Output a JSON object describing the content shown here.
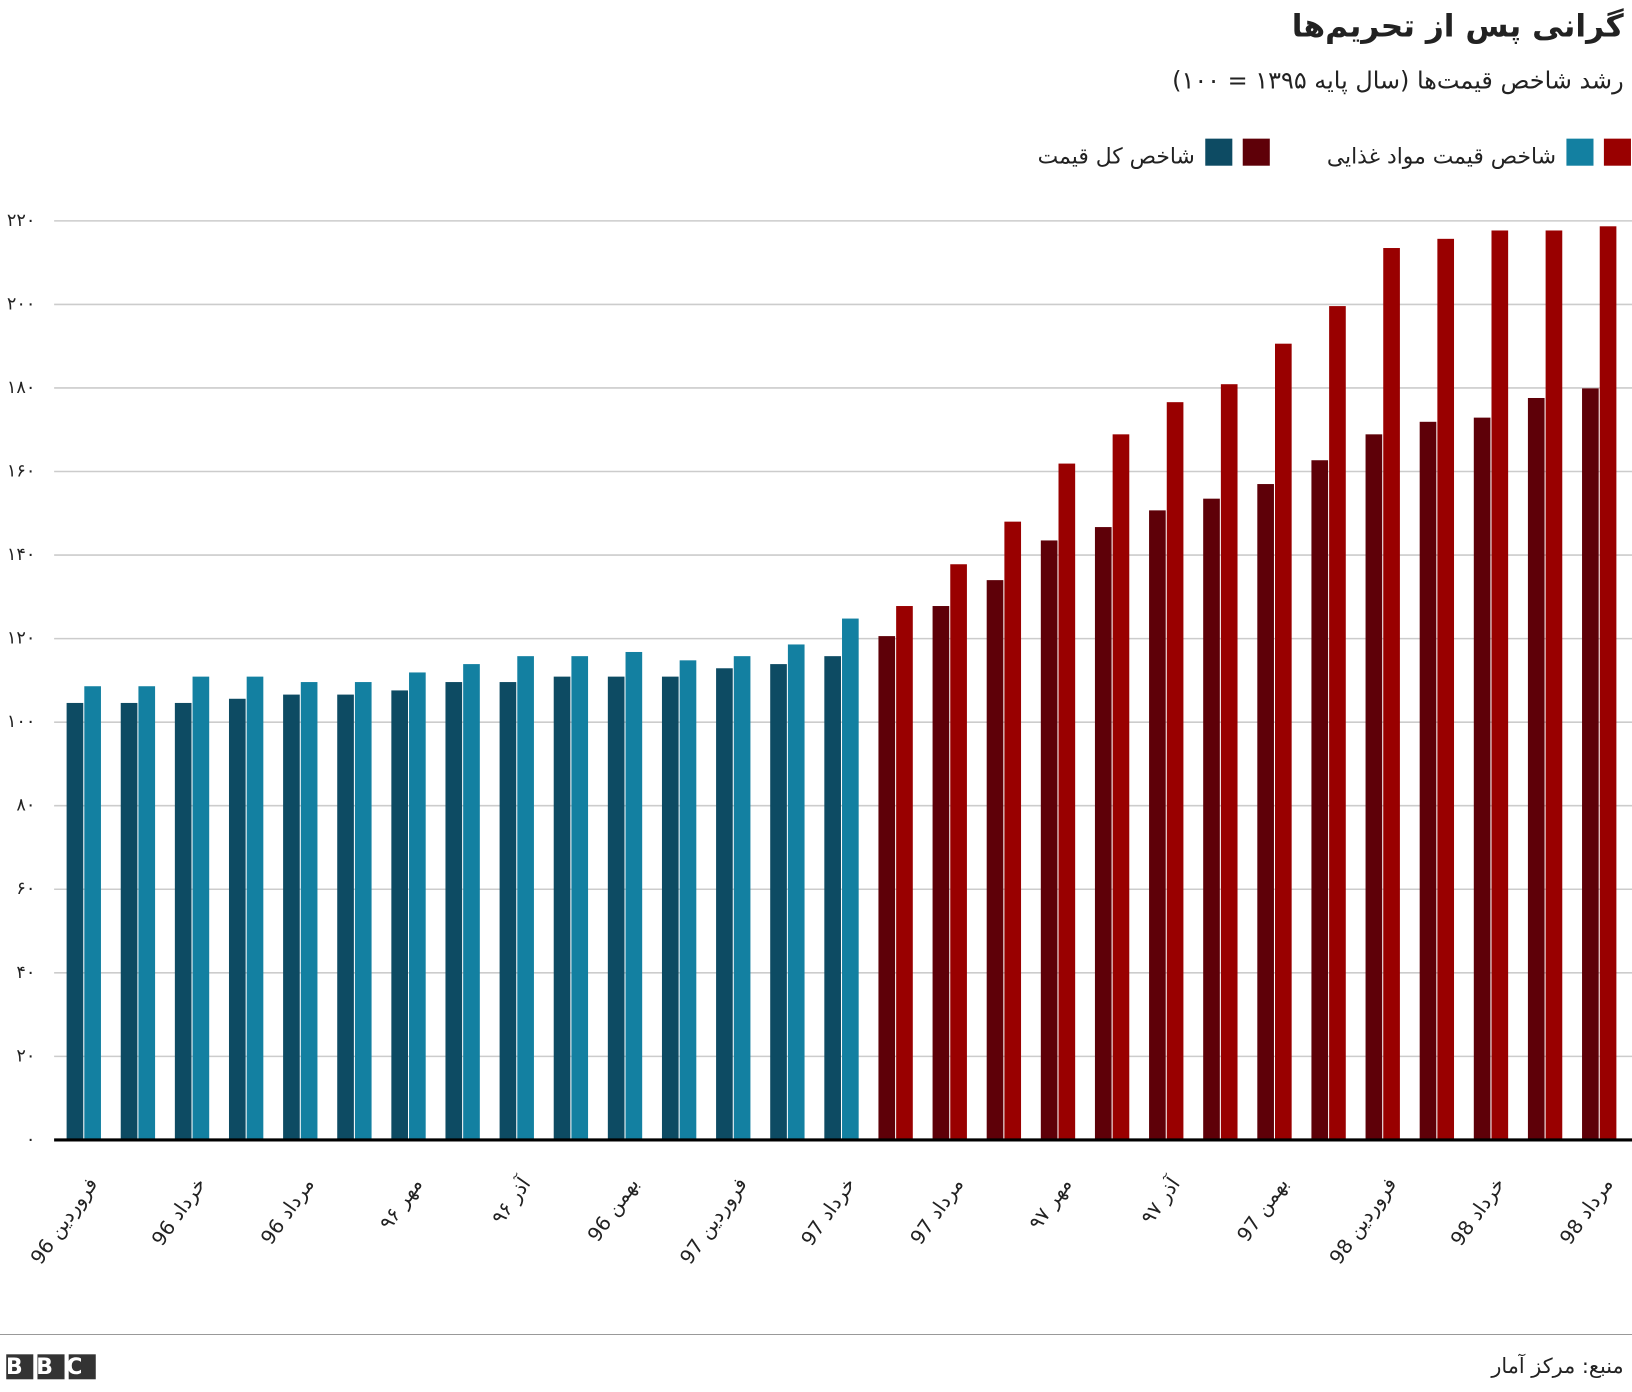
{
  "chart_data": {
    "type": "bar",
    "title": "گرانی پس از تحریم‌ها",
    "subtitle": "رشد شاخص قیمت‌ها (سال پایه ۱۳۹۵ = ۱۰۰)",
    "source": "منبع: مرکز آمار",
    "logo": "BBC",
    "categories": [
      "فروردین 96",
      null,
      "خرداد 96",
      null,
      "مرداد 96",
      null,
      "مهر ۹۶",
      null,
      "آذر ۹۶",
      null,
      "بهمن 96",
      null,
      "فروردین 97",
      null,
      "خرداد 97",
      null,
      "مرداد 97",
      null,
      "مهر ۹۷",
      null,
      "آذر ۹۷",
      null,
      "بهمن 97",
      null,
      "فروردین 98",
      null,
      "خرداد 98",
      null,
      "مرداد 98"
    ],
    "series": [
      {
        "name": "شاخص کل قیمت",
        "colors": [
          "#0d4b63",
          "#0d4b63",
          "#0d4b63",
          "#0d4b63",
          "#0d4b63",
          "#0d4b63",
          "#0d4b63",
          "#0d4b63",
          "#0d4b63",
          "#0d4b63",
          "#0d4b63",
          "#0d4b63",
          "#0d4b63",
          "#0d4b63",
          "#0d4b63",
          "#5e0008",
          "#5e0008",
          "#5e0008",
          "#5e0008",
          "#5e0008",
          "#5e0008",
          "#5e0008",
          "#5e0008",
          "#5e0008",
          "#5e0008",
          "#5e0008",
          "#5e0008",
          "#5e0008",
          "#5e0008"
        ],
        "values": [
          104.6,
          104.6,
          104.6,
          105.6,
          106.6,
          106.6,
          107.6,
          109.6,
          109.6,
          110.9,
          110.9,
          110.9,
          112.9,
          113.9,
          115.8,
          120.6,
          127.8,
          134.0,
          143.5,
          146.7,
          150.7,
          153.5,
          157.0,
          162.7,
          168.9,
          171.9,
          172.9,
          177.6,
          179.9
        ]
      },
      {
        "name": "شاخص قیمت مواد غذایی",
        "colors": [
          "#1380a1",
          "#1380a1",
          "#1380a1",
          "#1380a1",
          "#1380a1",
          "#1380a1",
          "#1380a1",
          "#1380a1",
          "#1380a1",
          "#1380a1",
          "#1380a1",
          "#1380a1",
          "#1380a1",
          "#1380a1",
          "#1380a1",
          "#990000",
          "#990000",
          "#990000",
          "#990000",
          "#990000",
          "#990000",
          "#990000",
          "#990000",
          "#990000",
          "#990000",
          "#990000",
          "#990000",
          "#990000",
          "#990000"
        ],
        "values": [
          108.6,
          108.6,
          110.9,
          110.9,
          109.6,
          109.6,
          111.9,
          113.9,
          115.8,
          115.8,
          116.8,
          114.8,
          115.8,
          118.6,
          124.8,
          127.8,
          137.8,
          148.0,
          161.9,
          168.9,
          176.6,
          180.9,
          190.6,
          199.6,
          213.5,
          215.7,
          217.7,
          217.7,
          218.7
        ]
      }
    ],
    "ylim": [
      0,
      220
    ],
    "yticks": [
      {
        "value": 0,
        "label": "۰"
      },
      {
        "value": 20,
        "label": "۲۰"
      },
      {
        "value": 40,
        "label": "۴۰"
      },
      {
        "value": 60,
        "label": "۶۰"
      },
      {
        "value": 80,
        "label": "۸۰"
      },
      {
        "value": 100,
        "label": "۱۰۰"
      },
      {
        "value": 120,
        "label": "۱۲۰"
      },
      {
        "value": 140,
        "label": "۱۴۰"
      },
      {
        "value": 160,
        "label": "۱۶۰"
      },
      {
        "value": 180,
        "label": "۱۸۰"
      },
      {
        "value": 200,
        "label": "۲۰۰"
      },
      {
        "value": 220,
        "label": "۲۲۰"
      }
    ],
    "grid": true
  }
}
